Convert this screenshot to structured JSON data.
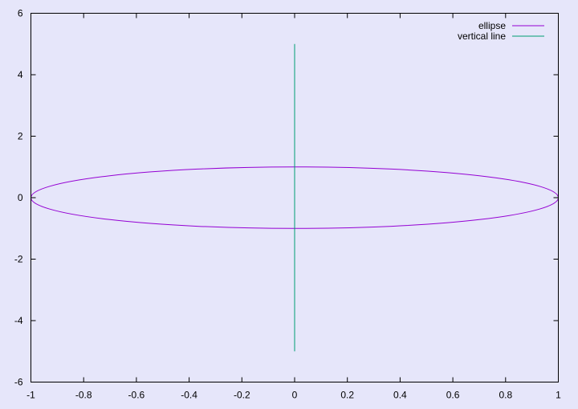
{
  "chart_data": {
    "type": "line",
    "title": "",
    "xlabel": "",
    "ylabel": "",
    "xlim": [
      -1,
      1
    ],
    "ylim": [
      -6,
      6
    ],
    "grid": false,
    "legend_position": "top-right",
    "background_color": "#e6e6fa",
    "x_ticks": [
      {
        "value": -1,
        "label": "-1"
      },
      {
        "value": -0.8,
        "label": "-0.8"
      },
      {
        "value": -0.6,
        "label": "-0.6"
      },
      {
        "value": -0.4,
        "label": "-0.4"
      },
      {
        "value": -0.2,
        "label": "-0.2"
      },
      {
        "value": 0,
        "label": "0"
      },
      {
        "value": 0.2,
        "label": "0.2"
      },
      {
        "value": 0.4,
        "label": "0.4"
      },
      {
        "value": 0.6,
        "label": "0.6"
      },
      {
        "value": 0.8,
        "label": "0.8"
      },
      {
        "value": 1,
        "label": "1"
      }
    ],
    "y_ticks": [
      {
        "value": -6,
        "label": "-6"
      },
      {
        "value": -4,
        "label": "-4"
      },
      {
        "value": -2,
        "label": "-2"
      },
      {
        "value": 0,
        "label": "0"
      },
      {
        "value": 2,
        "label": "2"
      },
      {
        "value": 4,
        "label": "4"
      },
      {
        "value": 6,
        "label": "6"
      }
    ],
    "series": [
      {
        "name": "ellipse",
        "color": "#9400d3",
        "shape": "ellipse",
        "center": [
          0,
          0
        ],
        "x_radius": 1,
        "y_radius": 1
      },
      {
        "name": "vertical line",
        "color": "#009e73",
        "x": [
          0,
          0
        ],
        "y": [
          -5,
          5
        ]
      }
    ]
  }
}
